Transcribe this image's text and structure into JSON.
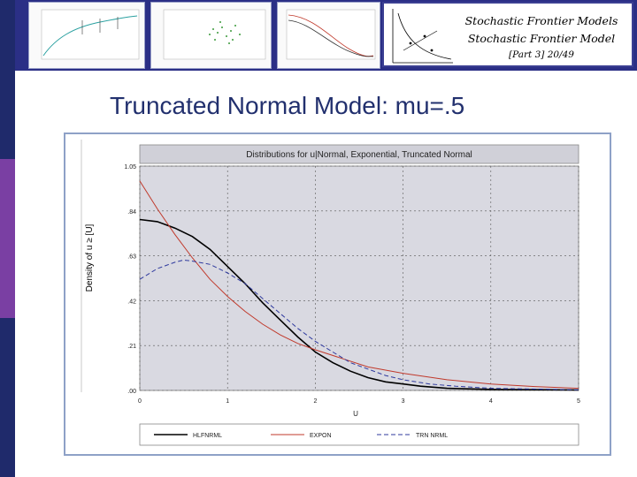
{
  "slide": {
    "header_line1": "Stochastic Frontier Models",
    "header_line2": "Stochastic Frontier Model",
    "header_line3": "[Part 3]   20/49",
    "title": "Truncated Normal Model: mu=.5"
  },
  "colors": {
    "banner": "#2b2f86",
    "stripe_dark": "#1f2a6b",
    "stripe_purple": "#7a3fa3",
    "title_text": "#22306e",
    "plot_bg": "#d9d9e1"
  },
  "chart_data": {
    "type": "line",
    "title": "Distributions for u|Normal, Exponential, Truncated Normal",
    "xlabel": "U",
    "ylabel": "Density of u ≥ [U]",
    "xlim": [
      0,
      5
    ],
    "ylim": [
      0,
      1.05
    ],
    "x_ticks": [
      "0",
      "1",
      "2",
      "3",
      "4",
      "5"
    ],
    "y_ticks": [
      "1.05",
      ".84",
      ".63",
      ".42",
      ".21",
      ".00"
    ],
    "y_tick_values": [
      1.05,
      0.84,
      0.63,
      0.42,
      0.21,
      0.0
    ],
    "grid": true,
    "legend_position": "bottom",
    "series": [
      {
        "name": "HLFNRML",
        "color": "#000000",
        "dash": "",
        "points": [
          [
            0,
            0.8
          ],
          [
            0.2,
            0.79
          ],
          [
            0.4,
            0.76
          ],
          [
            0.6,
            0.72
          ],
          [
            0.8,
            0.66
          ],
          [
            1.0,
            0.58
          ],
          [
            1.2,
            0.5
          ],
          [
            1.4,
            0.41
          ],
          [
            1.6,
            0.33
          ],
          [
            1.8,
            0.25
          ],
          [
            2.0,
            0.18
          ],
          [
            2.2,
            0.13
          ],
          [
            2.4,
            0.09
          ],
          [
            2.6,
            0.06
          ],
          [
            2.8,
            0.04
          ],
          [
            3.0,
            0.03
          ],
          [
            3.2,
            0.02
          ],
          [
            3.5,
            0.01
          ],
          [
            4.0,
            0.005
          ],
          [
            5.0,
            0.002
          ]
        ]
      },
      {
        "name": "EXPON",
        "color": "#c0392b",
        "dash": "",
        "points": [
          [
            0,
            0.98
          ],
          [
            0.2,
            0.85
          ],
          [
            0.4,
            0.73
          ],
          [
            0.6,
            0.62
          ],
          [
            0.8,
            0.52
          ],
          [
            1.0,
            0.44
          ],
          [
            1.2,
            0.37
          ],
          [
            1.4,
            0.31
          ],
          [
            1.6,
            0.26
          ],
          [
            1.8,
            0.22
          ],
          [
            2.0,
            0.19
          ],
          [
            2.3,
            0.15
          ],
          [
            2.6,
            0.11
          ],
          [
            3.0,
            0.08
          ],
          [
            3.5,
            0.05
          ],
          [
            4.0,
            0.03
          ],
          [
            4.5,
            0.018
          ],
          [
            5.0,
            0.01
          ]
        ]
      },
      {
        "name": "TRN NRML",
        "color": "#2f3a9e",
        "dash": "5,3",
        "points": [
          [
            0,
            0.52
          ],
          [
            0.2,
            0.57
          ],
          [
            0.4,
            0.6
          ],
          [
            0.5,
            0.61
          ],
          [
            0.6,
            0.605
          ],
          [
            0.8,
            0.59
          ],
          [
            1.0,
            0.55
          ],
          [
            1.2,
            0.5
          ],
          [
            1.4,
            0.43
          ],
          [
            1.6,
            0.36
          ],
          [
            1.8,
            0.29
          ],
          [
            2.0,
            0.23
          ],
          [
            2.2,
            0.18
          ],
          [
            2.4,
            0.13
          ],
          [
            2.6,
            0.1
          ],
          [
            2.8,
            0.07
          ],
          [
            3.0,
            0.05
          ],
          [
            3.3,
            0.03
          ],
          [
            3.6,
            0.02
          ],
          [
            4.0,
            0.01
          ],
          [
            5.0,
            0.003
          ]
        ]
      }
    ]
  }
}
